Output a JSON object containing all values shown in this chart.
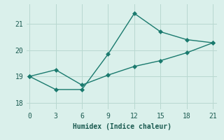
{
  "xlabel": "Humidex (Indice chaleur)",
  "bg_color": "#daf0eb",
  "line_color": "#1a7a6e",
  "grid_color": "#b8d8d0",
  "line1_x": [
    0,
    3,
    6,
    9,
    12,
    15,
    18,
    21
  ],
  "line1_y": [
    19.0,
    18.5,
    18.5,
    19.85,
    21.4,
    20.7,
    20.4,
    20.28
  ],
  "line2_x": [
    0,
    3,
    6,
    9,
    12,
    15,
    18,
    21
  ],
  "line2_y": [
    19.0,
    19.25,
    18.67,
    19.05,
    19.38,
    19.6,
    19.9,
    20.28
  ],
  "xlim": [
    -0.3,
    21.5
  ],
  "ylim": [
    17.75,
    21.75
  ],
  "xticks": [
    0,
    3,
    6,
    9,
    12,
    15,
    18,
    21
  ],
  "yticks": [
    18,
    19,
    20,
    21
  ],
  "markersize": 3.0,
  "linewidth": 1.0
}
